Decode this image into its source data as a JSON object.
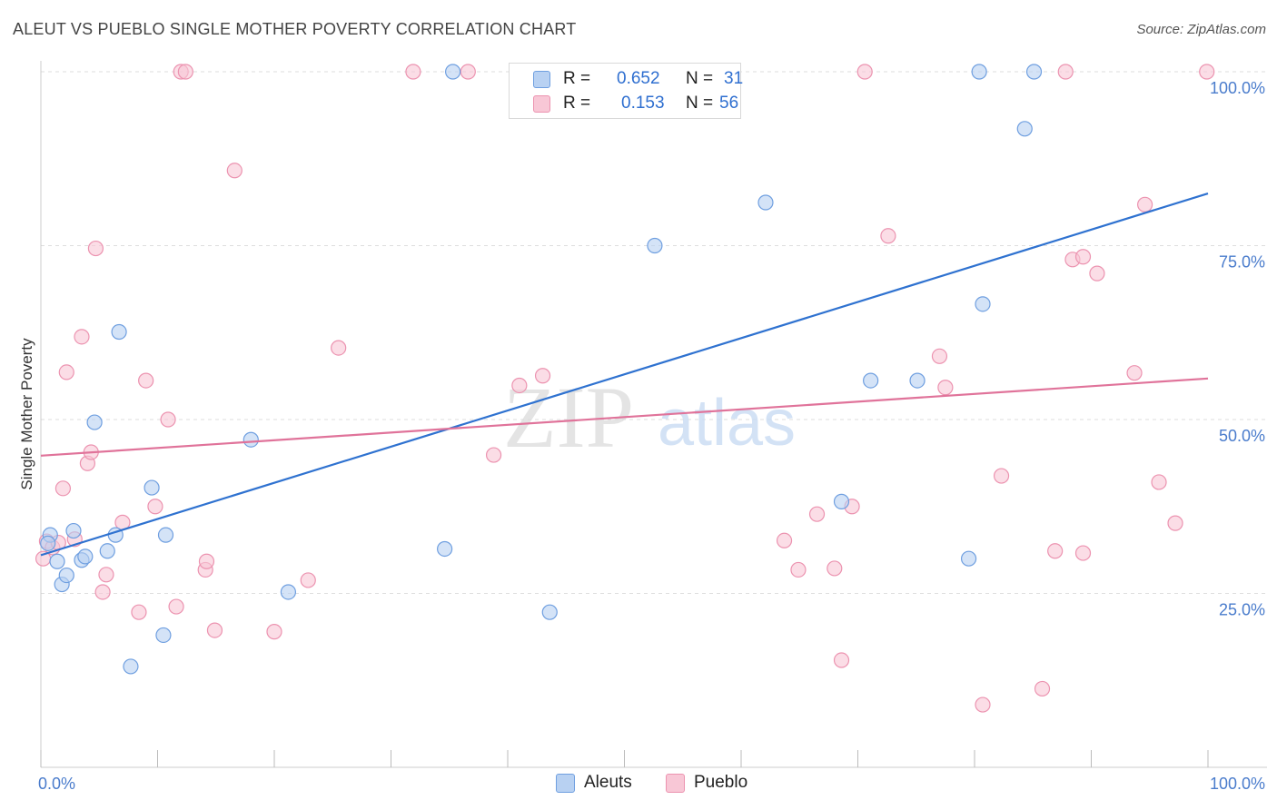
{
  "title": "ALEUT VS PUEBLO SINGLE MOTHER POVERTY CORRELATION CHART",
  "source": "Source: ZipAtlas.com",
  "watermark": {
    "zip": "ZIP",
    "atlas": "atlas"
  },
  "legend": {
    "r_label": "R =",
    "n_label": "N =",
    "aleuts": {
      "r": "0.652",
      "n": "31"
    },
    "pueblo": {
      "r": "0.153",
      "n": "56"
    }
  },
  "bottom_legend": {
    "aleuts": "Aleuts",
    "pueblo": "Pueblo"
  },
  "colors": {
    "aleuts_fill": "#b8d1f2",
    "aleuts_stroke": "#6f9fe0",
    "aleuts_line": "#2f72d0",
    "pueblo_fill": "#f8c7d6",
    "pueblo_stroke": "#ec93b0",
    "pueblo_line": "#e0739a",
    "tick_text": "#4a7ccc"
  },
  "chart_data": {
    "type": "scatter",
    "title": "ALEUT VS PUEBLO SINGLE MOTHER POVERTY CORRELATION CHART",
    "xlabel": "",
    "ylabel": "Single Mother Poverty",
    "xlim": [
      0,
      100
    ],
    "ylim": [
      0,
      100
    ],
    "x_tick_labels": [
      "0.0%",
      "100.0%"
    ],
    "y_ticks": [
      {
        "value": 25,
        "label": "25.0%"
      },
      {
        "value": 50,
        "label": "50.0%"
      },
      {
        "value": 75,
        "label": "75.0%"
      },
      {
        "value": 100,
        "label": "100.0%"
      }
    ],
    "series": [
      {
        "name": "Aleuts",
        "trend": {
          "x0": 0,
          "y0": 30.5,
          "x1": 100,
          "y1": 82.5
        },
        "points": [
          [
            0.8,
            33.4
          ],
          [
            0.6,
            32.2
          ],
          [
            1.4,
            29.6
          ],
          [
            1.8,
            26.3
          ],
          [
            2.2,
            27.6
          ],
          [
            2.8,
            34.0
          ],
          [
            3.5,
            29.8
          ],
          [
            3.8,
            30.3
          ],
          [
            4.6,
            49.6
          ],
          [
            5.7,
            31.1
          ],
          [
            6.4,
            33.4
          ],
          [
            6.7,
            62.6
          ],
          [
            7.7,
            14.5
          ],
          [
            9.5,
            40.2
          ],
          [
            10.5,
            19.0
          ],
          [
            10.7,
            33.4
          ],
          [
            18.0,
            47.1
          ],
          [
            21.2,
            25.2
          ],
          [
            34.6,
            31.4
          ],
          [
            35.3,
            100.0
          ],
          [
            43.6,
            22.3
          ],
          [
            52.6,
            75.0
          ],
          [
            62.1,
            81.2
          ],
          [
            68.6,
            38.2
          ],
          [
            71.1,
            55.6
          ],
          [
            75.1,
            55.6
          ],
          [
            79.5,
            30.0
          ],
          [
            80.4,
            100.0
          ],
          [
            80.7,
            66.6
          ],
          [
            84.3,
            91.8
          ],
          [
            85.1,
            100.0
          ]
        ]
      },
      {
        "name": "Pueblo",
        "trend": {
          "x0": 0,
          "y0": 44.8,
          "x1": 100,
          "y1": 55.9
        },
        "points": [
          [
            0.2,
            30.0
          ],
          [
            0.5,
            32.5
          ],
          [
            1.0,
            31.6
          ],
          [
            1.5,
            32.3
          ],
          [
            1.9,
            40.1
          ],
          [
            2.2,
            56.8
          ],
          [
            2.9,
            32.8
          ],
          [
            3.5,
            61.9
          ],
          [
            4.0,
            43.7
          ],
          [
            4.3,
            45.3
          ],
          [
            4.7,
            74.6
          ],
          [
            5.3,
            25.2
          ],
          [
            5.6,
            27.7
          ],
          [
            7.0,
            35.2
          ],
          [
            8.4,
            22.3
          ],
          [
            9.0,
            55.6
          ],
          [
            9.8,
            37.5
          ],
          [
            10.9,
            50.0
          ],
          [
            11.6,
            23.1
          ],
          [
            12.0,
            100.0
          ],
          [
            12.4,
            100.0
          ],
          [
            14.1,
            28.4
          ],
          [
            14.2,
            29.6
          ],
          [
            14.9,
            19.7
          ],
          [
            16.6,
            85.8
          ],
          [
            20.0,
            19.5
          ],
          [
            22.9,
            26.9
          ],
          [
            25.5,
            60.3
          ],
          [
            31.9,
            100.0
          ],
          [
            38.8,
            44.9
          ],
          [
            36.6,
            100.0
          ],
          [
            41.0,
            54.9
          ],
          [
            43.0,
            56.3
          ],
          [
            63.7,
            32.6
          ],
          [
            64.9,
            28.4
          ],
          [
            66.5,
            36.4
          ],
          [
            68.0,
            28.6
          ],
          [
            68.6,
            15.4
          ],
          [
            69.5,
            37.5
          ],
          [
            70.6,
            100.0
          ],
          [
            72.6,
            76.4
          ],
          [
            77.0,
            59.1
          ],
          [
            77.5,
            54.6
          ],
          [
            80.7,
            9.0
          ],
          [
            82.3,
            41.9
          ],
          [
            85.8,
            11.3
          ],
          [
            86.9,
            31.1
          ],
          [
            87.8,
            100.0
          ],
          [
            88.4,
            73.0
          ],
          [
            89.3,
            73.4
          ],
          [
            89.3,
            30.8
          ],
          [
            90.5,
            71.0
          ],
          [
            93.7,
            56.7
          ],
          [
            94.6,
            80.9
          ],
          [
            95.8,
            41.0
          ],
          [
            97.2,
            35.1
          ],
          [
            99.9,
            100.0
          ]
        ]
      }
    ]
  }
}
